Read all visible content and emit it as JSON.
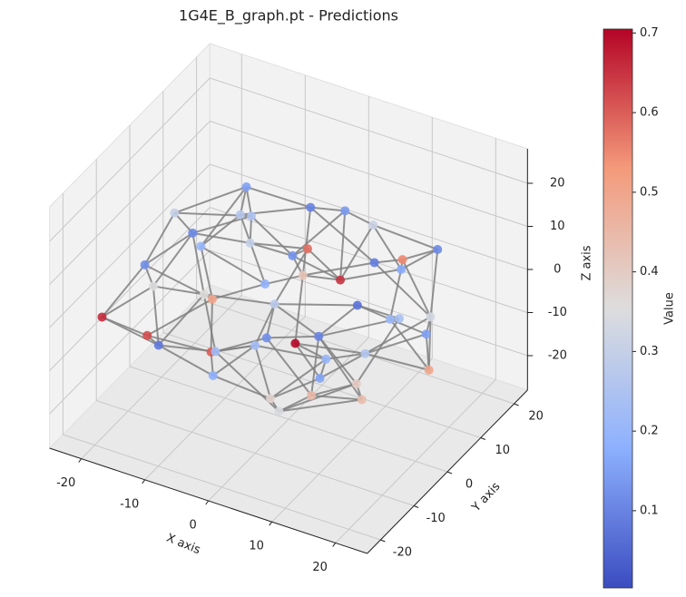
{
  "chart_data": {
    "type": "scatter3d",
    "title": "1G4E_B_graph.pt - Predictions",
    "xlabel": "X axis",
    "ylabel": "Y axis",
    "zlabel": "Z axis",
    "colorbar_label": "Value",
    "xlim": [
      -25,
      25
    ],
    "ylim": [
      -24,
      24
    ],
    "zlim": [
      -28,
      28
    ],
    "xticks": [
      -20,
      -10,
      0,
      10,
      20
    ],
    "yticks": [
      -20,
      -10,
      0,
      10,
      20
    ],
    "zticks": [
      -20,
      -10,
      0,
      10,
      20
    ],
    "clim": [
      0.003,
      0.705
    ],
    "cticks": [
      0.1,
      0.2,
      0.3,
      0.4,
      0.5,
      0.6,
      0.7
    ],
    "colormap": "coolwarm",
    "edge_color": "#808080",
    "grid": true,
    "x": [
      -20,
      -18,
      -15,
      -14,
      -12,
      -11,
      -9,
      -8,
      -6,
      -5,
      -4,
      -3,
      -1,
      0,
      1,
      2,
      3,
      4,
      5,
      6,
      7,
      8,
      9,
      10,
      11,
      12,
      13,
      14,
      15,
      16,
      17,
      18,
      19,
      20,
      -19,
      -17,
      -13,
      -10,
      -7,
      -2,
      0,
      3,
      6,
      -16,
      9,
      14,
      -22,
      21
    ],
    "y": [
      -5,
      8,
      -12,
      14,
      0,
      -18,
      6,
      -8,
      18,
      -2,
      -15,
      10,
      -20,
      2,
      15,
      -8,
      20,
      -13,
      6,
      -18,
      12,
      -4,
      17,
      -10,
      2,
      -16,
      9,
      -6,
      14,
      0,
      -12,
      7,
      -3,
      4,
      2,
      -10,
      -4,
      12,
      -12,
      5,
      -10,
      0,
      -2,
      16,
      -20,
      18,
      -14,
      -18
    ],
    "z": [
      2,
      -3,
      5,
      8,
      -6,
      -2,
      10,
      -10,
      4,
      12,
      -8,
      -4,
      3,
      -12,
      9,
      6,
      -6,
      -11,
      2,
      8,
      11,
      -7,
      0,
      4,
      -9,
      -4,
      6,
      10,
      -8,
      3,
      -2,
      -5,
      7,
      -10,
      9,
      -9,
      12,
      -11,
      7,
      5,
      -3,
      13,
      -14,
      -1,
      -6,
      4,
      -4,
      1
    ],
    "values": [
      0.12,
      0.2,
      0.35,
      0.15,
      0.5,
      0.08,
      0.25,
      0.6,
      0.1,
      0.3,
      0.18,
      0.42,
      0.22,
      0.7,
      0.14,
      0.28,
      0.09,
      0.38,
      0.65,
      0.12,
      0.31,
      0.2,
      0.55,
      0.1,
      0.26,
      0.45,
      0.17,
      0.07,
      0.33,
      0.21,
      0.4,
      0.15,
      0.24,
      0.5,
      0.3,
      0.62,
      0.11,
      0.19,
      0.36,
      0.13,
      0.23,
      0.58,
      0.16,
      0.27,
      0.34,
      0.11,
      0.66,
      0.44
    ]
  }
}
